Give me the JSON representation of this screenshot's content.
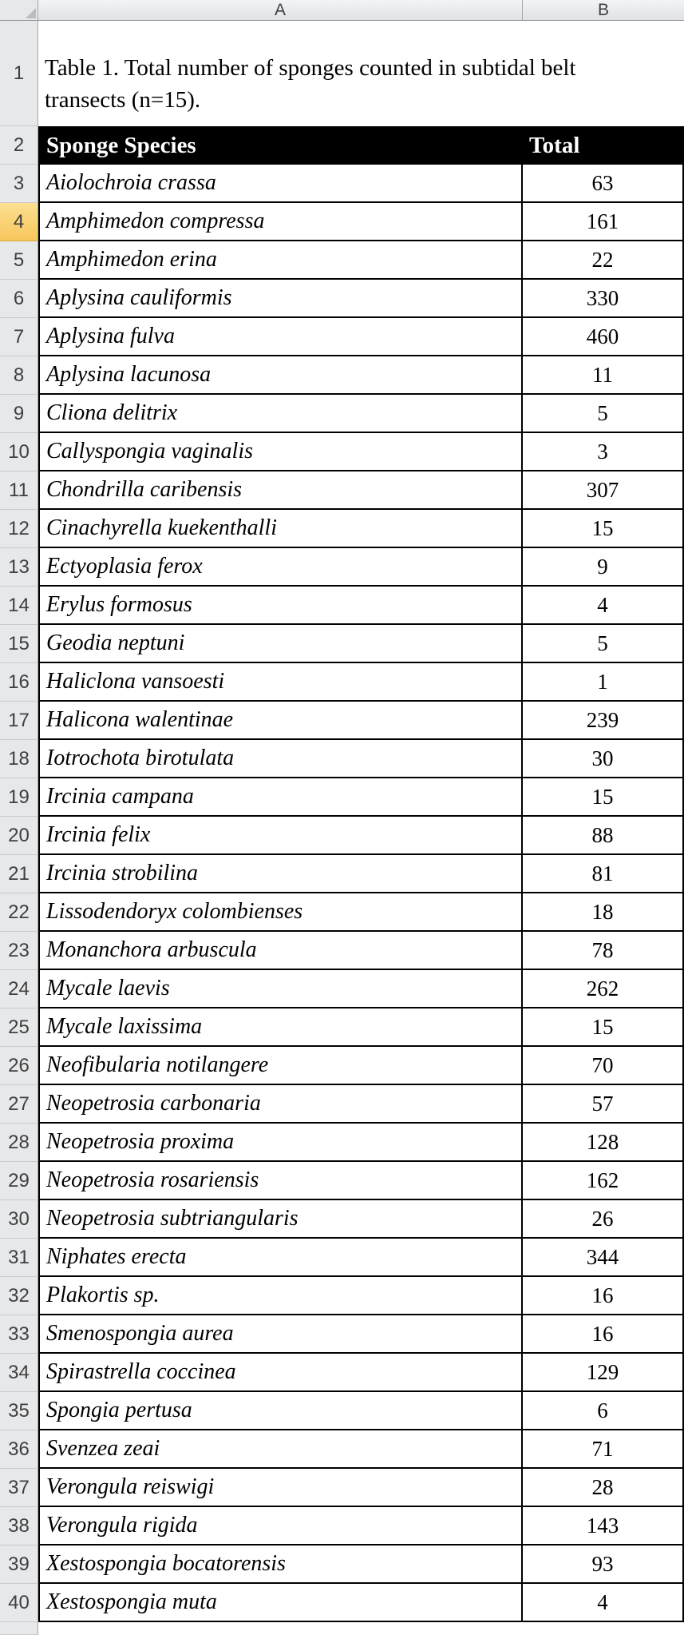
{
  "spreadsheet": {
    "column_headers": [
      "A",
      "B"
    ],
    "selected_row": 4,
    "rows": {
      "title": {
        "number": "1",
        "text": "Table 1. Total number of sponges counted in subtidal belt transects (n=15)."
      },
      "header": {
        "number": "2",
        "species": "Sponge Species",
        "total": "Total"
      }
    },
    "data_rows": [
      {
        "number": "3",
        "species": "Aiolochroia crassa",
        "total": "63"
      },
      {
        "number": "4",
        "species": "Amphimedon compressa",
        "total": "161"
      },
      {
        "number": "5",
        "species": "Amphimedon erina",
        "total": "22"
      },
      {
        "number": "6",
        "species": "Aplysina cauliformis",
        "total": "330"
      },
      {
        "number": "7",
        "species": "Aplysina fulva",
        "total": "460"
      },
      {
        "number": "8",
        "species": "Aplysina lacunosa",
        "total": "11"
      },
      {
        "number": "9",
        "species": "Cliona delitrix",
        "total": "5"
      },
      {
        "number": "10",
        "species": "Callyspongia vaginalis",
        "total": "3"
      },
      {
        "number": "11",
        "species": "Chondrilla caribensis",
        "total": "307"
      },
      {
        "number": "12",
        "species": "Cinachyrella kuekenthalli",
        "total": "15"
      },
      {
        "number": "13",
        "species": "Ectyoplasia ferox",
        "total": "9"
      },
      {
        "number": "14",
        "species": "Erylus formosus",
        "total": "4"
      },
      {
        "number": "15",
        "species": "Geodia neptuni",
        "total": "5"
      },
      {
        "number": "16",
        "species": "Haliclona vansoesti",
        "total": "1"
      },
      {
        "number": "17",
        "species": "Halicona walentinae",
        "total": "239"
      },
      {
        "number": "18",
        "species": "Iotrochota birotulata",
        "total": "30"
      },
      {
        "number": "19",
        "species": "Ircinia campana",
        "total": "15"
      },
      {
        "number": "20",
        "species": "Ircinia felix",
        "total": "88"
      },
      {
        "number": "21",
        "species": "Ircinia strobilina",
        "total": "81"
      },
      {
        "number": "22",
        "species": "Lissodendoryx colombienses",
        "total": "18"
      },
      {
        "number": "23",
        "species": "Monanchora arbuscula",
        "total": "78"
      },
      {
        "number": "24",
        "species": "Mycale laevis",
        "total": "262"
      },
      {
        "number": "25",
        "species": "Mycale laxissima",
        "total": "15"
      },
      {
        "number": "26",
        "species": "Neofibularia notilangere",
        "total": "70"
      },
      {
        "number": "27",
        "species": "Neopetrosia carbonaria",
        "total": "57"
      },
      {
        "number": "28",
        "species": "Neopetrosia proxima",
        "total": "128"
      },
      {
        "number": "29",
        "species": "Neopetrosia rosariensis",
        "total": "162"
      },
      {
        "number": "30",
        "species": "Neopetrosia subtriangularis",
        "total": "26"
      },
      {
        "number": "31",
        "species": "Niphates erecta",
        "total": "344"
      },
      {
        "number": "32",
        "species": "Plakortis sp.",
        "total": "16"
      },
      {
        "number": "33",
        "species": "Smenospongia aurea",
        "total": "16"
      },
      {
        "number": "34",
        "species": "Spirastrella coccinea",
        "total": "129"
      },
      {
        "number": "35",
        "species": "Spongia pertusa",
        "total": "6"
      },
      {
        "number": "36",
        "species": "Svenzea zeai",
        "total": "71"
      },
      {
        "number": "37",
        "species": "Verongula reiswigi",
        "total": "28"
      },
      {
        "number": "38",
        "species": "Verongula rigida",
        "total": "143"
      },
      {
        "number": "39",
        "species": "Xestospongia bocatorensis",
        "total": "93"
      },
      {
        "number": "40",
        "species": "Xestospongia muta",
        "total": "4"
      }
    ],
    "colors": {
      "header_fill": "#000000",
      "header_text": "#ffffff",
      "selected_row_header_fill": "#F8CE6B",
      "grid_header_fill": "#E7E8EA"
    }
  }
}
